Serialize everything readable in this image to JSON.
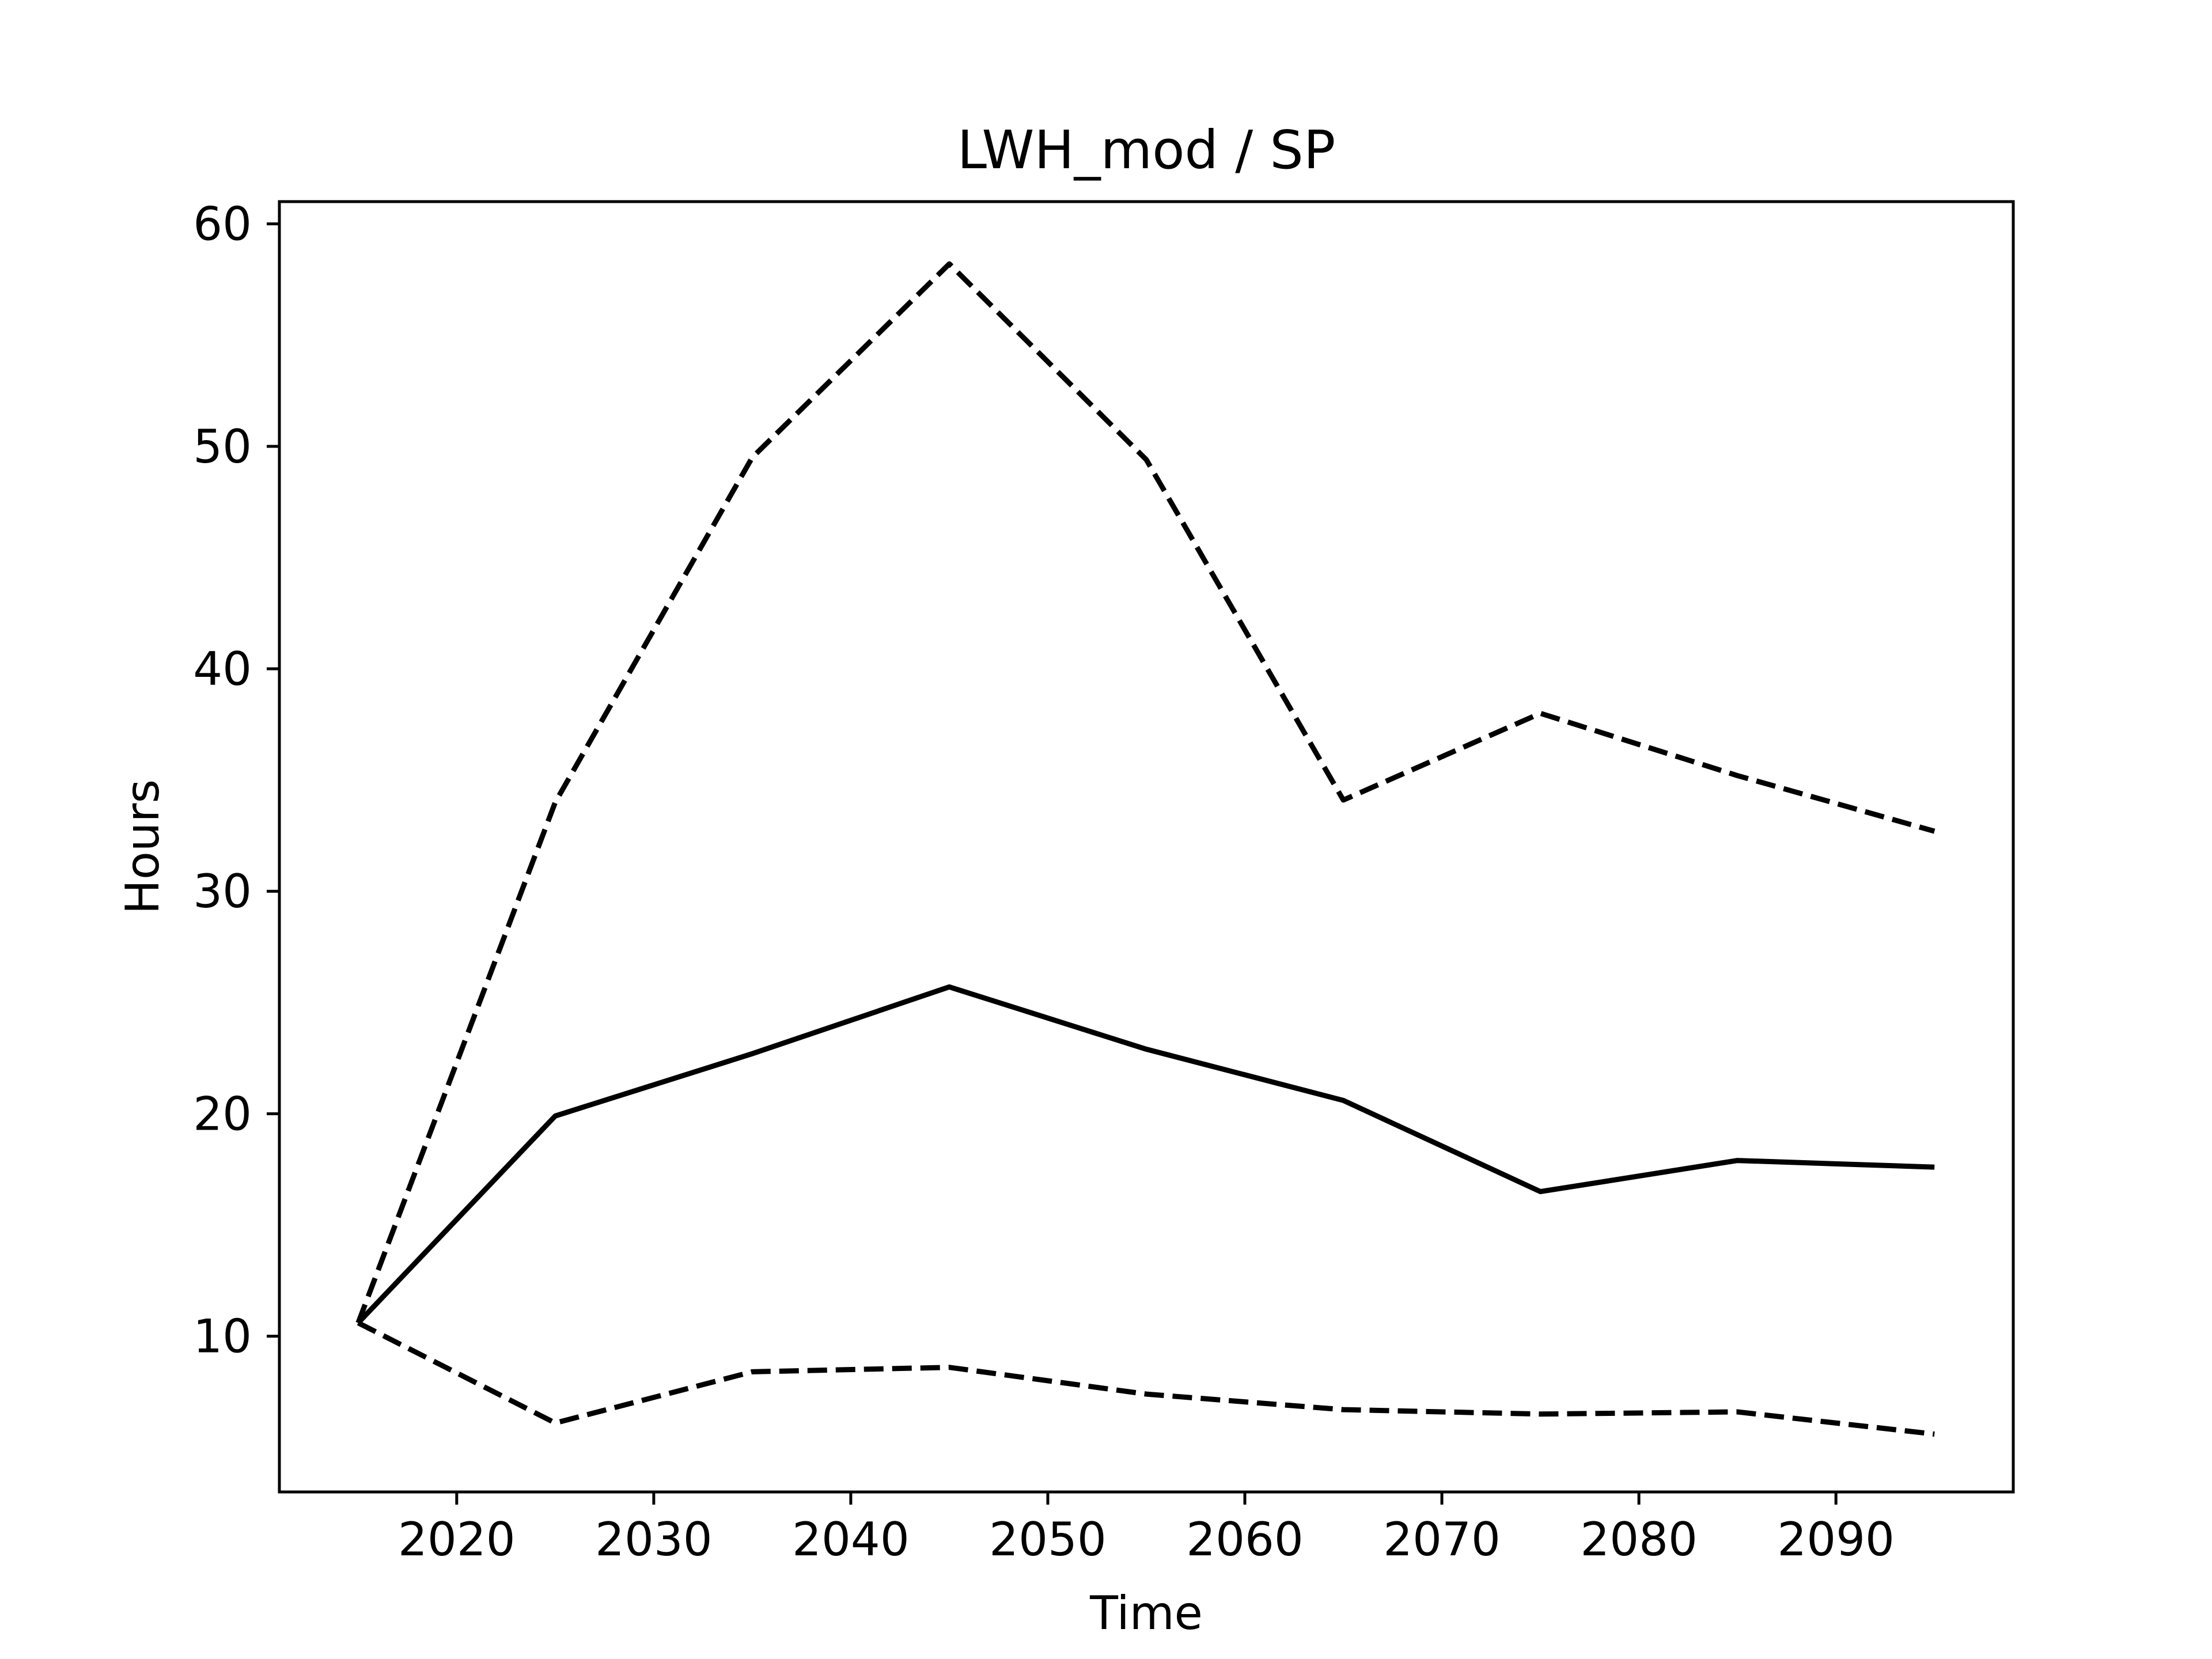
{
  "chart_data": {
    "type": "line",
    "title": "LWH_mod / SP",
    "xlabel": "Time",
    "ylabel": "Hours",
    "xlim": [
      2011,
      2099
    ],
    "ylim": [
      3,
      61
    ],
    "x_ticks": [
      2020,
      2030,
      2040,
      2050,
      2060,
      2070,
      2080,
      2090
    ],
    "y_ticks": [
      10,
      20,
      30,
      40,
      50,
      60
    ],
    "x": [
      2015,
      2025,
      2035,
      2045,
      2055,
      2065,
      2075,
      2085,
      2095
    ],
    "series": [
      {
        "style": "solid",
        "color": "#000000",
        "values": [
          10.6,
          19.9,
          22.7,
          25.7,
          22.9,
          20.6,
          16.5,
          17.9,
          17.6
        ]
      },
      {
        "style": "dashed",
        "color": "#000000",
        "values": [
          10.6,
          34.0,
          49.5,
          58.2,
          49.4,
          34.1,
          38.0,
          35.2,
          32.7
        ]
      },
      {
        "style": "dashed",
        "color": "#000000",
        "values": [
          10.6,
          6.1,
          8.4,
          8.6,
          7.4,
          6.7,
          6.5,
          6.6,
          5.6
        ]
      }
    ],
    "grid": false,
    "legend": false
  }
}
